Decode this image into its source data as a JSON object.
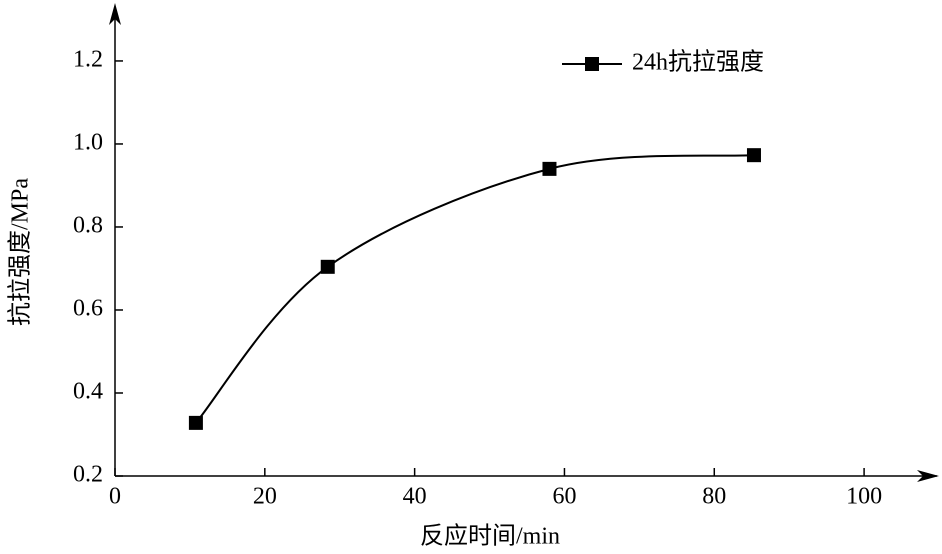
{
  "chart_data": {
    "type": "line",
    "x_label": "反应时间/min",
    "y_label": "抗拉强度/MPa",
    "x": [
      10.8,
      28.4,
      58.0,
      85.3
    ],
    "series": [
      {
        "name": "24h抗拉强度",
        "color": "#000000",
        "values": [
          0.328,
          0.704,
          0.94,
          0.973
        ]
      }
    ],
    "xlim": [
      0,
      110
    ],
    "xticks": [
      0,
      20,
      40,
      60,
      80,
      100
    ],
    "ylim": [
      0.2,
      1.33
    ],
    "yticks": [
      0.2,
      0.4,
      0.6,
      0.8,
      {
        "value": 1,
        "label": "1.0"
      },
      1.2
    ],
    "smooth": true,
    "marker": "square",
    "legend": "upper right",
    "grid": false
  }
}
